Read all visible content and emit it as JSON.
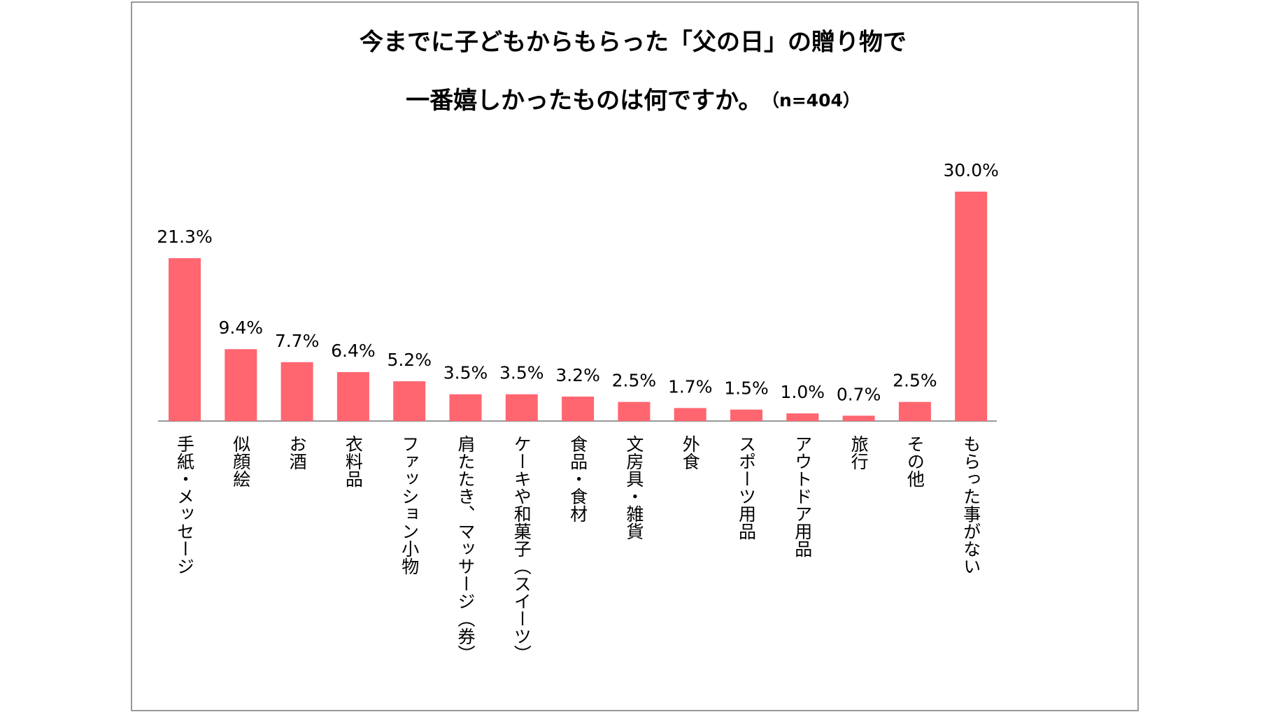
{
  "chart_data": {
    "type": "bar",
    "title": [
      "今までに子どもからもらった「父の日」の贈り物で",
      "一番嬉しかったものは何ですか。"
    ],
    "subtitle": "（n=404）",
    "categories": [
      "手紙・メッセージ",
      "似顔絵",
      "お酒",
      "衣料品",
      "ファッション小物",
      "肩たたき、マッサージ（券）",
      "ケーキや和菓子（スイーツ）",
      "食品・食材",
      "文房具・雑貨",
      "外食",
      "スポーツ用品",
      "アウトドア用品",
      "旅行",
      "その他",
      "もらった事がない"
    ],
    "values": [
      21.3,
      9.4,
      7.7,
      6.4,
      5.2,
      3.5,
      3.5,
      3.2,
      2.5,
      1.7,
      1.5,
      1.0,
      0.7,
      2.5,
      30.0
    ],
    "value_labels": [
      "21.3%",
      "9.4%",
      "7.7%",
      "6.4%",
      "5.2%",
      "3.5%",
      "3.5%",
      "3.2%",
      "2.5%",
      "1.7%",
      "1.5%",
      "1.0%",
      "0.7%",
      "2.5%",
      "30.0%"
    ],
    "color": "#ff6670"
  }
}
